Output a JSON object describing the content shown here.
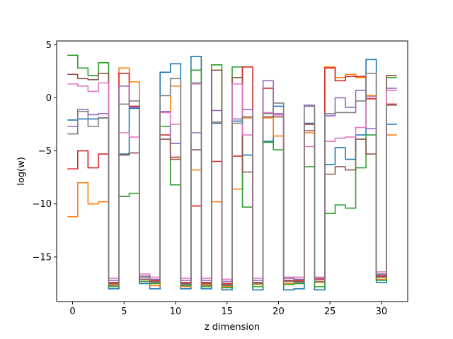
{
  "chart_data": {
    "type": "line",
    "drawstyle": "steps-mid",
    "xlabel": "z dimension",
    "ylabel": "log(w)",
    "xlim": [
      -1.55,
      32.55
    ],
    "ylim": [
      -19.2,
      5.35
    ],
    "xticks": [
      0,
      5,
      10,
      15,
      20,
      25,
      30
    ],
    "yticks": [
      5,
      0,
      -5,
      -10,
      -15
    ],
    "ytick_labels": [
      "5",
      "0",
      "−5",
      "−10",
      "−15"
    ],
    "grid": false,
    "x": [
      0,
      1,
      2,
      3,
      4,
      5,
      6,
      7,
      8,
      9,
      10,
      11,
      12,
      13,
      14,
      15,
      16,
      17,
      18,
      19,
      20,
      21,
      22,
      23,
      24,
      25,
      26,
      27,
      28,
      29,
      30,
      31
    ],
    "series": [
      {
        "color": "#1f77b4",
        "values": [
          -2.1,
          -2.0,
          -2.0,
          -1.9,
          -18.0,
          -5.3,
          -1.0,
          -17.5,
          -18.0,
          2.4,
          3.2,
          -18.0,
          3.9,
          -18.0,
          -2.4,
          -18.1,
          -2.2,
          -5.4,
          -18.1,
          -4.1,
          -0.8,
          -18.1,
          -18.0,
          -2.4,
          -18.1,
          -6.3,
          -4.7,
          -5.8,
          -3.5,
          3.6,
          -17.4,
          -2.5
        ]
      },
      {
        "color": "#ff7f0e",
        "values": [
          -11.2,
          -8.0,
          -10.0,
          -9.8,
          -17.6,
          2.8,
          1.5,
          -17.3,
          -17.7,
          -1.3,
          1.1,
          -17.8,
          -6.8,
          -17.6,
          -9.8,
          -17.8,
          -8.6,
          -1.9,
          -17.6,
          -1.9,
          -3.6,
          -17.5,
          -17.4,
          -3.3,
          -17.4,
          2.9,
          1.9,
          2.2,
          1.9,
          0.2,
          -17.1,
          -3.5
        ]
      },
      {
        "color": "#2ca02c",
        "values": [
          4.0,
          2.8,
          2.1,
          3.3,
          -17.8,
          -9.3,
          -9.0,
          -17.3,
          -17.5,
          -2.7,
          -8.2,
          -17.7,
          2.6,
          -17.8,
          3.1,
          -17.9,
          2.9,
          -10.3,
          -17.8,
          -4.2,
          -4.9,
          -17.6,
          -17.5,
          -6.5,
          -17.8,
          -10.9,
          -10.1,
          -10.4,
          -6.6,
          -3.5,
          -17.2,
          1.9
        ]
      },
      {
        "color": "#d62728",
        "values": [
          -6.7,
          -5.0,
          -6.6,
          -5.3,
          -17.4,
          2.3,
          -0.8,
          -17.1,
          -17.2,
          -3.5,
          -5.6,
          -17.4,
          -10.2,
          -17.4,
          -6.0,
          -17.5,
          -5.5,
          2.9,
          -17.4,
          0.9,
          -1.6,
          -17.2,
          -17.2,
          -2.5,
          -17.1,
          2.8,
          1.6,
          2.0,
          2.0,
          -0.1,
          -16.8,
          -0.6
        ]
      },
      {
        "color": "#9467bd",
        "values": [
          -2.7,
          -1.1,
          -1.6,
          -1.5,
          -17.2,
          1.1,
          -0.9,
          -16.9,
          -17.1,
          -1.3,
          -4.3,
          -17.2,
          -3.3,
          -17.2,
          -1.2,
          -17.3,
          -2.0,
          -1.1,
          -17.2,
          1.6,
          -1.5,
          -17.0,
          -17.1,
          -0.7,
          -17.0,
          -1.7,
          0.0,
          -0.9,
          0.7,
          -2.9,
          -16.7,
          0.9
        ]
      },
      {
        "color": "#8c564b",
        "values": [
          2.2,
          1.8,
          1.7,
          2.3,
          -17.5,
          -5.4,
          -5.2,
          -17.1,
          -17.3,
          -3.9,
          -5.8,
          -17.5,
          -4.9,
          -17.5,
          2.6,
          -17.6,
          1.9,
          -7.0,
          -17.4,
          -1.8,
          -1.8,
          -17.3,
          -17.3,
          -3.1,
          -17.3,
          -7.2,
          -6.5,
          -6.8,
          -3.9,
          -5.3,
          -16.9,
          2.1
        ]
      },
      {
        "color": "#e377c2",
        "values": [
          1.3,
          1.1,
          0.6,
          1.4,
          -17.0,
          -3.3,
          -3.7,
          -16.6,
          -16.9,
          -1.4,
          -2.5,
          -17.0,
          1.3,
          -17.0,
          -2.3,
          -17.1,
          1.3,
          -3.5,
          -17.0,
          -1.4,
          -1.6,
          -16.9,
          -16.9,
          -4.6,
          -16.9,
          -4.1,
          -3.8,
          -3.7,
          -2.8,
          0.1,
          -16.4,
          0.7
        ]
      },
      {
        "color": "#7f7f7f",
        "values": [
          -3.4,
          -1.3,
          -2.7,
          -1.9,
          -17.7,
          -0.6,
          -0.3,
          -16.8,
          -17.4,
          0.2,
          1.8,
          -17.6,
          1.4,
          -17.7,
          -2.3,
          -17.7,
          -2.4,
          -1.8,
          -17.5,
          -1.5,
          -0.5,
          -17.3,
          -17.4,
          -0.8,
          -17.3,
          -1.5,
          -1.4,
          -1.4,
          -0.3,
          2.3,
          -16.6,
          -0.7
        ]
      }
    ]
  }
}
